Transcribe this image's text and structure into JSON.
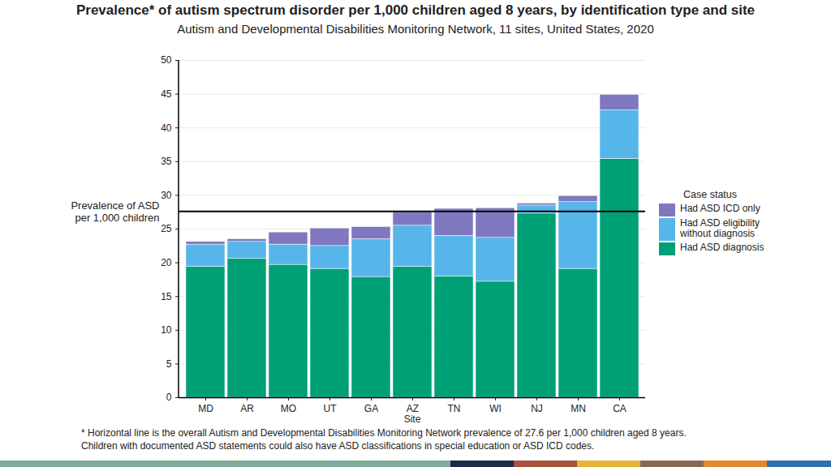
{
  "chart_data": {
    "type": "bar",
    "title": "Prevalence* of autism spectrum disorder per 1,000 children aged 8 years, by identification type and site",
    "subtitle": "Autism and Developmental Disabilities Monitoring Network, 11 sites, United States, 2020",
    "x_label": "Site",
    "categories": [
      "MD",
      "AR",
      "MO",
      "UT",
      "GA",
      "AZ",
      "TN",
      "WI",
      "NJ",
      "MN",
      "CA"
    ],
    "series": [
      {
        "name": "Had ASD diagnosis",
        "color": "#00a077",
        "values": [
          19.4,
          20.6,
          19.7,
          19.1,
          17.9,
          19.4,
          18.0,
          17.2,
          27.3,
          19.1,
          35.4
        ]
      },
      {
        "name": "Had ASD eligibility without diagnosis",
        "color": "#56b6ea",
        "values": [
          3.3,
          2.5,
          3.0,
          3.4,
          5.6,
          6.1,
          6.0,
          6.5,
          1.2,
          9.9,
          7.2
        ]
      },
      {
        "name": "Had ASD ICD only",
        "color": "#7f78bf",
        "values": [
          0.4,
          0.4,
          1.8,
          2.6,
          1.8,
          2.0,
          4.0,
          4.4,
          0.3,
          0.9,
          2.3
        ]
      }
    ],
    "stacked": true,
    "ylim": [
      0,
      50
    ],
    "yticks": [
      0,
      5,
      10,
      15,
      20,
      25,
      30,
      35,
      40,
      45,
      50
    ],
    "grid": true,
    "legend": "right",
    "legend_title": "Case status",
    "reference_line": {
      "value": 27.6,
      "label": "Prevalence of ASD\nper 1,000 children"
    },
    "footnote": [
      "* Horizontal line is the overall Autism and Developmental Disabilities Monitoring Network prevalence of 27.6 per 1,000 children aged 8 years.",
      "Children with documented ASD statements could also have ASD classifications in special education or ASD ICD codes."
    ]
  }
}
